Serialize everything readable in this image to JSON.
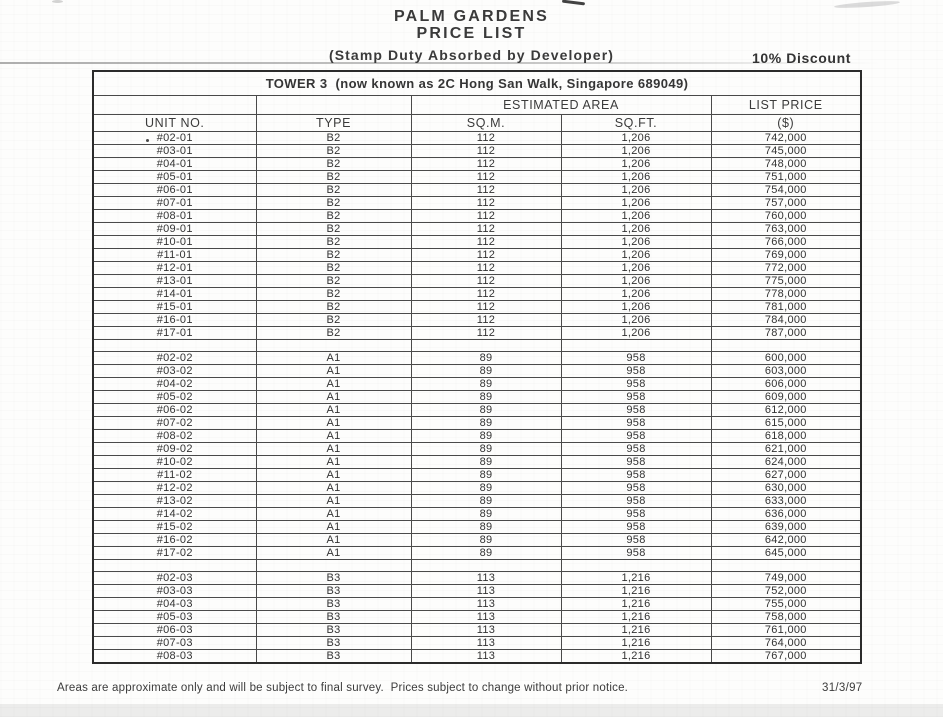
{
  "title_line1": "PALM GARDENS",
  "title_line2": "PRICE LIST",
  "subtitle": "(Stamp Duty Absorbed by Developer)",
  "discount_note": "10% Discount",
  "table": {
    "tower_header": "TOWER 3  (now known as 2C Hong San Walk, Singapore 689049)",
    "col_groups": {
      "estimated_area": "ESTIMATED AREA",
      "list_price": "LIST PRICE"
    },
    "columns": [
      "UNIT NO.",
      "TYPE",
      "SQ.M.",
      "SQ.FT.",
      "($)"
    ],
    "blocks": [
      {
        "rows": [
          [
            "#02-01",
            "B2",
            "112",
            "1,206",
            "742,000"
          ],
          [
            "#03-01",
            "B2",
            "112",
            "1,206",
            "745,000"
          ],
          [
            "#04-01",
            "B2",
            "112",
            "1,206",
            "748,000"
          ],
          [
            "#05-01",
            "B2",
            "112",
            "1,206",
            "751,000"
          ],
          [
            "#06-01",
            "B2",
            "112",
            "1,206",
            "754,000"
          ],
          [
            "#07-01",
            "B2",
            "112",
            "1,206",
            "757,000"
          ],
          [
            "#08-01",
            "B2",
            "112",
            "1,206",
            "760,000"
          ],
          [
            "#09-01",
            "B2",
            "112",
            "1,206",
            "763,000"
          ],
          [
            "#10-01",
            "B2",
            "112",
            "1,206",
            "766,000"
          ],
          [
            "#11-01",
            "B2",
            "112",
            "1,206",
            "769,000"
          ],
          [
            "#12-01",
            "B2",
            "112",
            "1,206",
            "772,000"
          ],
          [
            "#13-01",
            "B2",
            "112",
            "1,206",
            "775,000"
          ],
          [
            "#14-01",
            "B2",
            "112",
            "1,206",
            "778,000"
          ],
          [
            "#15-01",
            "B2",
            "112",
            "1,206",
            "781,000"
          ],
          [
            "#16-01",
            "B2",
            "112",
            "1,206",
            "784,000"
          ],
          [
            "#17-01",
            "B2",
            "112",
            "1,206",
            "787,000"
          ]
        ]
      },
      {
        "rows": [
          [
            "#02-02",
            "A1",
            "89",
            "958",
            "600,000"
          ],
          [
            "#03-02",
            "A1",
            "89",
            "958",
            "603,000"
          ],
          [
            "#04-02",
            "A1",
            "89",
            "958",
            "606,000"
          ],
          [
            "#05-02",
            "A1",
            "89",
            "958",
            "609,000"
          ],
          [
            "#06-02",
            "A1",
            "89",
            "958",
            "612,000"
          ],
          [
            "#07-02",
            "A1",
            "89",
            "958",
            "615,000"
          ],
          [
            "#08-02",
            "A1",
            "89",
            "958",
            "618,000"
          ],
          [
            "#09-02",
            "A1",
            "89",
            "958",
            "621,000"
          ],
          [
            "#10-02",
            "A1",
            "89",
            "958",
            "624,000"
          ],
          [
            "#11-02",
            "A1",
            "89",
            "958",
            "627,000"
          ],
          [
            "#12-02",
            "A1",
            "89",
            "958",
            "630,000"
          ],
          [
            "#13-02",
            "A1",
            "89",
            "958",
            "633,000"
          ],
          [
            "#14-02",
            "A1",
            "89",
            "958",
            "636,000"
          ],
          [
            "#15-02",
            "A1",
            "89",
            "958",
            "639,000"
          ],
          [
            "#16-02",
            "A1",
            "89",
            "958",
            "642,000"
          ],
          [
            "#17-02",
            "A1",
            "89",
            "958",
            "645,000"
          ]
        ]
      },
      {
        "rows": [
          [
            "#02-03",
            "B3",
            "113",
            "1,216",
            "749,000"
          ],
          [
            "#03-03",
            "B3",
            "113",
            "1,216",
            "752,000"
          ],
          [
            "#04-03",
            "B3",
            "113",
            "1,216",
            "755,000"
          ],
          [
            "#05-03",
            "B3",
            "113",
            "1,216",
            "758,000"
          ],
          [
            "#06-03",
            "B3",
            "113",
            "1,216",
            "761,000"
          ],
          [
            "#07-03",
            "B3",
            "113",
            "1,216",
            "764,000"
          ],
          [
            "#08-03",
            "B3",
            "113",
            "1,216",
            "767,000"
          ]
        ]
      }
    ]
  },
  "footer": {
    "note": "Areas are approximate only and will be subject to final survey.  Prices subject to change without prior notice.",
    "date": "31/3/97"
  }
}
